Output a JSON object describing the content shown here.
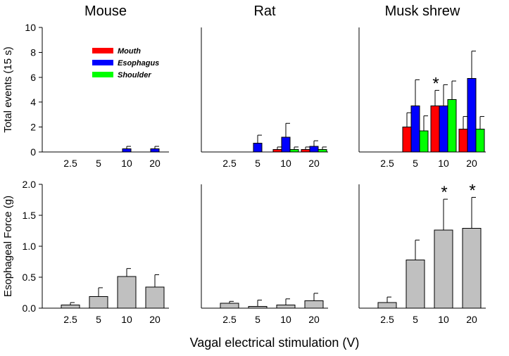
{
  "chart_data": [
    {
      "id": "mouse-events",
      "type": "bar",
      "title": "Mouse",
      "ylabel": "Total events (15 s)",
      "ylim": [
        0,
        10
      ],
      "yticks": [
        0,
        2,
        4,
        6,
        8,
        10
      ],
      "categories": [
        "2.5",
        "5",
        "10",
        "20"
      ],
      "series": [
        {
          "name": "Mouth",
          "values": [
            0,
            0,
            0,
            0
          ],
          "errors": [
            0,
            0,
            0,
            0
          ]
        },
        {
          "name": "Esophagus",
          "values": [
            0,
            0,
            0.25,
            0.25
          ],
          "errors": [
            0,
            0,
            0.2,
            0.2
          ]
        },
        {
          "name": "Shoulder",
          "values": [
            0,
            0,
            0,
            0
          ],
          "errors": [
            0,
            0,
            0,
            0
          ]
        }
      ],
      "significant": []
    },
    {
      "id": "rat-events",
      "type": "bar",
      "title": "Rat",
      "ylim": [
        0,
        10
      ],
      "categories": [
        "2.5",
        "5",
        "10",
        "20"
      ],
      "series": [
        {
          "name": "Mouth",
          "values": [
            0,
            0,
            0.2,
            0.2
          ],
          "errors": [
            0,
            0,
            0.2,
            0.2
          ]
        },
        {
          "name": "Esophagus",
          "values": [
            0,
            0.7,
            1.2,
            0.45
          ],
          "errors": [
            0,
            0.65,
            1.1,
            0.45
          ]
        },
        {
          "name": "Shoulder",
          "values": [
            0,
            0,
            0.2,
            0.2
          ],
          "errors": [
            0,
            0,
            0.2,
            0.2
          ]
        }
      ],
      "significant": []
    },
    {
      "id": "shrew-events",
      "type": "bar",
      "title": "Musk shrew",
      "ylim": [
        0,
        10
      ],
      "categories": [
        "2.5",
        "5",
        "10",
        "20"
      ],
      "series": [
        {
          "name": "Mouth",
          "values": [
            0,
            2.0,
            3.7,
            1.85
          ],
          "errors": [
            0,
            1.15,
            1.25,
            1.0
          ]
        },
        {
          "name": "Esophagus",
          "values": [
            0,
            3.7,
            3.7,
            5.9
          ],
          "errors": [
            0,
            2.1,
            1.7,
            2.2
          ]
        },
        {
          "name": "Shoulder",
          "values": [
            0,
            1.7,
            4.2,
            1.85
          ],
          "errors": [
            0,
            1.2,
            1.5,
            1.0
          ]
        }
      ],
      "significant": [
        "10"
      ]
    },
    {
      "id": "mouse-force",
      "type": "bar",
      "ylabel": "Esophageal Force (g)",
      "ylim": [
        0,
        2.0
      ],
      "yticks": [
        "0.0",
        "0.5",
        "1.0",
        "1.5",
        "2.0"
      ],
      "categories": [
        "2.5",
        "5",
        "10",
        "20"
      ],
      "values": [
        0.05,
        0.19,
        0.51,
        0.34
      ],
      "errors": [
        0.04,
        0.14,
        0.13,
        0.2
      ],
      "significant": []
    },
    {
      "id": "rat-force",
      "type": "bar",
      "ylim": [
        0,
        2.0
      ],
      "categories": [
        "2.5",
        "5",
        "10",
        "20"
      ],
      "values": [
        0.08,
        0.03,
        0.05,
        0.12
      ],
      "errors": [
        0.03,
        0.1,
        0.1,
        0.12
      ],
      "significant": []
    },
    {
      "id": "shrew-force",
      "type": "bar",
      "ylim": [
        0,
        2.0
      ],
      "categories": [
        "2.5",
        "5",
        "10",
        "20"
      ],
      "values": [
        0.09,
        0.78,
        1.26,
        1.29
      ],
      "errors": [
        0.09,
        0.32,
        0.5,
        0.5
      ],
      "significant": [
        "10",
        "20"
      ]
    }
  ],
  "legend": [
    {
      "name": "Mouth",
      "color": "#ff0000"
    },
    {
      "name": "Esophagus",
      "color": "#0000ff"
    },
    {
      "name": "Shoulder",
      "color": "#00ff00"
    }
  ],
  "force_bar_color": "#c0c0c0",
  "significance_marker": "*",
  "xlabel": "Vagal electrical stimulation (V)"
}
